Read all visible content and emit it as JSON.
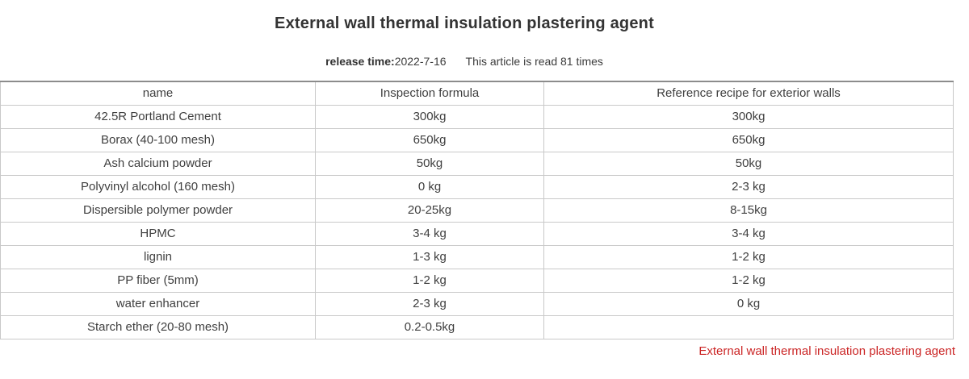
{
  "page": {
    "title": "External wall thermal insulation plastering agent",
    "release_label": "release time:",
    "release_date": "2022-7-16",
    "read_info": "This article is read 81 times",
    "footer_link": "External wall thermal insulation plastering agent"
  },
  "table": {
    "headers": [
      "name",
      "Inspection formula",
      "Reference recipe for exterior walls"
    ],
    "rows": [
      [
        "42.5R Portland Cement",
        "300kg",
        "300kg"
      ],
      [
        "Borax (40-100 mesh)",
        "650kg",
        "650kg"
      ],
      [
        "Ash calcium powder",
        "50kg",
        "50kg"
      ],
      [
        "Polyvinyl alcohol (160 mesh)",
        "0 kg",
        "2-3 kg"
      ],
      [
        "Dispersible polymer powder",
        "20-25kg",
        "8-15kg"
      ],
      [
        "HPMC",
        "3-4 kg",
        "3-4 kg"
      ],
      [
        "lignin",
        "1-3 kg",
        "1-2 kg"
      ],
      [
        "PP fiber (5mm)",
        "1-2 kg",
        "1-2 kg"
      ],
      [
        "water enhancer",
        "2-3 kg",
        "0 kg"
      ],
      [
        "Starch ether (20-80 mesh)",
        "0.2-0.5kg",
        ""
      ]
    ]
  },
  "colors": {
    "text": "#3f3f3f",
    "title_text": "#333333",
    "border_inner": "#c9c9c9",
    "border_top": "#8c8c8c",
    "accent_red": "#cb2525",
    "background": "#ffffff"
  }
}
